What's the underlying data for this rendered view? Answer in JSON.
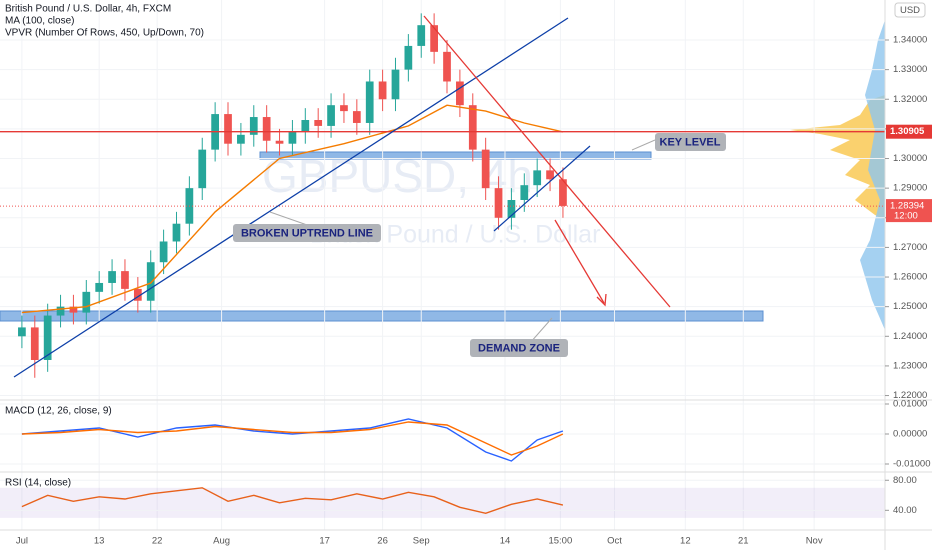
{
  "chart_data": [
    {
      "type": "candlestick",
      "title": "British Pound / U.S. Dollar, 4h, FXCM",
      "watermark": "GBPUSD, 4h",
      "watermark_subtitle": "British Pound / U.S. Dollar",
      "indicator_labels": [
        "VPVR (Number Of Rows, 450, Up/Down, 70)"
      ],
      "currency": "USD",
      "annotations": [
        "KEY LEVEL",
        "BROKEN UPTREND LINE",
        "DEMAND ZONE"
      ],
      "key_level": {
        "value": 1.30905,
        "label": "1.30905",
        "color": "#e53935"
      },
      "last_price": {
        "value": 1.28394,
        "label": "1.28394",
        "color": "#ef5350"
      },
      "countdown": "12:00",
      "grid": true,
      "xlim": [
        -3.4,
        134
      ],
      "xticks": [
        {
          "value": 0,
          "label": "Jul"
        },
        {
          "value": 12,
          "label": "13"
        },
        {
          "value": 21,
          "label": "22"
        },
        {
          "value": 31,
          "label": "Aug"
        },
        {
          "value": 47,
          "label": "17"
        },
        {
          "value": 56,
          "label": "26"
        },
        {
          "value": 62,
          "label": "Sep"
        },
        {
          "value": 75,
          "label": "14"
        },
        {
          "value": 83.6,
          "label": "15:00"
        },
        {
          "value": 92,
          "label": "Oct"
        },
        {
          "value": 103,
          "label": "12"
        },
        {
          "value": 112,
          "label": "21"
        },
        {
          "value": 123,
          "label": "Nov"
        }
      ],
      "ylim": [
        1.2185,
        1.3535
      ],
      "yticks": [
        {
          "value": 1.22,
          "label": "1.22000"
        },
        {
          "value": 1.23,
          "label": "1.23000"
        },
        {
          "value": 1.24,
          "label": "1.24000"
        },
        {
          "value": 1.25,
          "label": "1.25000"
        },
        {
          "value": 1.26,
          "label": "1.26000"
        },
        {
          "value": 1.27,
          "label": "1.27000"
        },
        {
          "value": 1.28,
          "label": "1.28000"
        },
        {
          "value": 1.29,
          "label": "1.29000"
        },
        {
          "value": 1.3,
          "label": "1.30000"
        },
        {
          "value": 1.31,
          "label": "1.31000"
        },
        {
          "value": 1.32,
          "label": "1.32000"
        },
        {
          "value": 1.33,
          "label": "1.33000"
        },
        {
          "value": 1.34,
          "label": "1.34000"
        }
      ],
      "up_color": "#26a69a",
      "down_color": "#ef5350",
      "x": [
        0,
        2,
        4,
        6,
        8,
        10,
        12,
        14,
        16,
        18,
        20,
        22,
        24,
        26,
        28,
        30,
        32,
        34,
        36,
        38,
        40,
        42,
        44,
        46,
        48,
        50,
        52,
        54,
        56,
        58,
        60,
        62,
        64,
        66,
        68,
        70,
        72,
        74,
        76,
        78,
        80,
        82,
        84
      ],
      "open": [
        1.24,
        1.243,
        1.232,
        1.247,
        1.25,
        1.248,
        1.255,
        1.258,
        1.262,
        1.256,
        1.252,
        1.265,
        1.272,
        1.278,
        1.29,
        1.303,
        1.315,
        1.305,
        1.308,
        1.314,
        1.306,
        1.305,
        1.309,
        1.313,
        1.311,
        1.318,
        1.316,
        1.312,
        1.326,
        1.32,
        1.33,
        1.338,
        1.345,
        1.336,
        1.326,
        1.318,
        1.303,
        1.29,
        1.28,
        1.286,
        1.291,
        1.296,
        1.293
      ],
      "high": [
        1.247,
        1.247,
        1.251,
        1.254,
        1.254,
        1.259,
        1.262,
        1.266,
        1.266,
        1.26,
        1.269,
        1.276,
        1.282,
        1.294,
        1.307,
        1.319,
        1.319,
        1.312,
        1.318,
        1.318,
        1.31,
        1.313,
        1.317,
        1.317,
        1.322,
        1.322,
        1.32,
        1.33,
        1.33,
        1.334,
        1.342,
        1.349,
        1.349,
        1.34,
        1.33,
        1.322,
        1.307,
        1.294,
        1.29,
        1.295,
        1.3,
        1.3,
        1.297
      ],
      "low": [
        1.236,
        1.226,
        1.228,
        1.243,
        1.244,
        1.244,
        1.251,
        1.254,
        1.252,
        1.248,
        1.248,
        1.261,
        1.268,
        1.274,
        1.286,
        1.299,
        1.301,
        1.301,
        1.304,
        1.302,
        1.301,
        1.301,
        1.305,
        1.307,
        1.307,
        1.312,
        1.308,
        1.308,
        1.316,
        1.316,
        1.326,
        1.334,
        1.332,
        1.322,
        1.314,
        1.299,
        1.286,
        1.276,
        1.276,
        1.282,
        1.287,
        1.289,
        1.28
      ],
      "close": [
        1.243,
        1.232,
        1.247,
        1.25,
        1.248,
        1.255,
        1.258,
        1.262,
        1.256,
        1.252,
        1.265,
        1.272,
        1.278,
        1.29,
        1.303,
        1.315,
        1.305,
        1.308,
        1.314,
        1.306,
        1.305,
        1.309,
        1.313,
        1.311,
        1.318,
        1.316,
        1.312,
        1.326,
        1.32,
        1.33,
        1.338,
        1.345,
        1.336,
        1.326,
        1.318,
        1.303,
        1.29,
        1.28,
        1.286,
        1.291,
        1.296,
        1.293,
        1.284
      ],
      "series": [
        {
          "name": "MA (100, close)",
          "color": "#f57c00",
          "x": [
            0,
            10,
            20,
            30,
            40,
            50,
            60,
            66,
            72,
            78,
            84
          ],
          "values": [
            1.248,
            1.25,
            1.258,
            1.282,
            1.3,
            1.305,
            1.311,
            1.318,
            1.316,
            1.312,
            1.309
          ]
        }
      ]
    },
    {
      "type": "line",
      "title": "MACD (12, 26, close, 9)",
      "ylim": [
        -0.01267,
        0.01133
      ],
      "yticks": [
        {
          "value": -0.01,
          "label": "-0.01000"
        },
        {
          "value": 0,
          "label": "0.00000"
        },
        {
          "value": 0.01,
          "label": "0.01000"
        }
      ],
      "series": [
        {
          "color": "#2962ff",
          "x": [
            0,
            6,
            12,
            18,
            24,
            30,
            36,
            42,
            48,
            54,
            60,
            66,
            72,
            76,
            80,
            84
          ],
          "values": [
            0.0,
            0.001,
            0.002,
            -0.001,
            0.002,
            0.003,
            0.001,
            0.0,
            0.001,
            0.002,
            0.005,
            0.002,
            -0.006,
            -0.009,
            -0.002,
            0.001
          ]
        },
        {
          "color": "#ff6d00",
          "x": [
            0,
            6,
            12,
            18,
            24,
            30,
            36,
            42,
            48,
            54,
            60,
            66,
            72,
            76,
            80,
            84
          ],
          "values": [
            0.0,
            0.0005,
            0.0015,
            0.0005,
            0.001,
            0.0025,
            0.0015,
            0.0005,
            0.0005,
            0.0015,
            0.004,
            0.003,
            -0.003,
            -0.007,
            -0.004,
            0.0
          ]
        }
      ]
    },
    {
      "type": "line",
      "title": "RSI (14, close)",
      "ylim": [
        13.8,
        91
      ],
      "yticks": [
        {
          "value": 40,
          "label": "40.00"
        },
        {
          "value": 80,
          "label": "80.00"
        }
      ],
      "band": [
        30,
        70
      ],
      "series": [
        {
          "color": "#e8611b",
          "x": [
            0,
            4,
            8,
            12,
            16,
            20,
            24,
            28,
            32,
            36,
            40,
            44,
            48,
            52,
            56,
            60,
            64,
            68,
            72,
            76,
            80,
            84
          ],
          "values": [
            45,
            60,
            52,
            58,
            55,
            62,
            66,
            70,
            52,
            60,
            50,
            56,
            54,
            62,
            55,
            64,
            58,
            44,
            36,
            48,
            55,
            47
          ]
        }
      ]
    }
  ]
}
